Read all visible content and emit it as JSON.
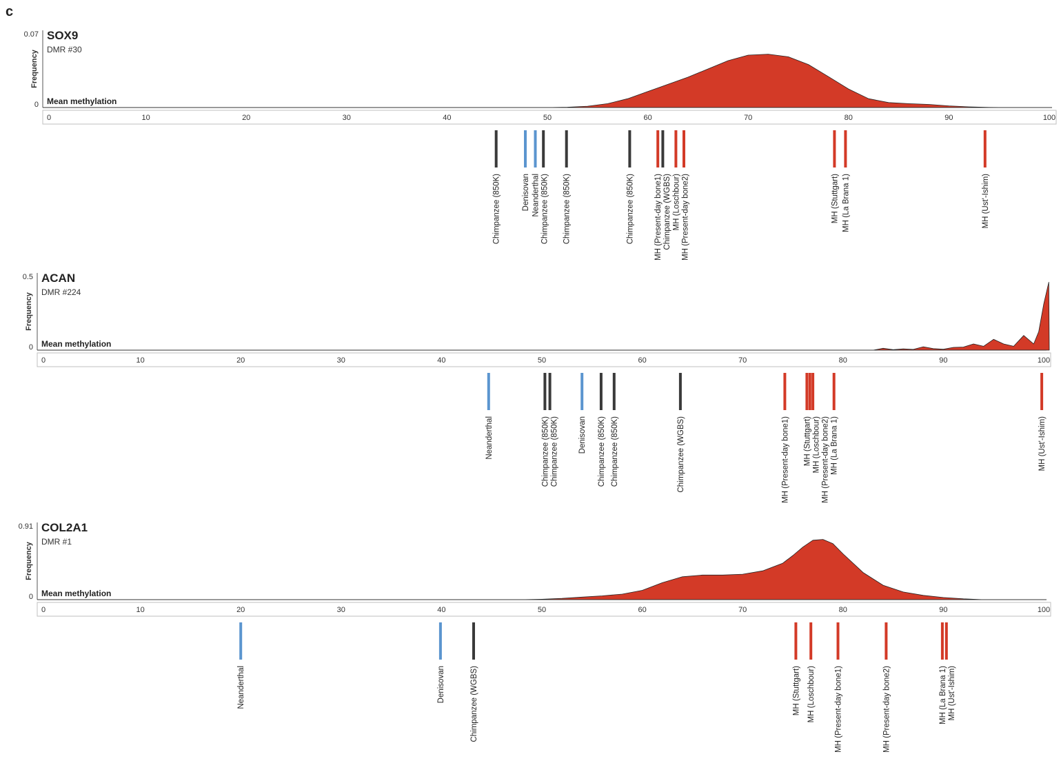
{
  "panel_label": "c",
  "colors": {
    "density_fill": "#d33a27",
    "density_stroke": "#222222",
    "modern_human": "#d33a27",
    "archaic": "#5b95cf",
    "chimpanzee": "#3a3a3a",
    "axis_box": "#bfbfbf"
  },
  "chart_data": [
    {
      "type": "area",
      "title": "SOX9",
      "subtitle": "DMR #30",
      "ylabel": "Frequency",
      "xlabel": "Mean methylation",
      "ylim": [
        0,
        0.07
      ],
      "ytick_labels": [
        "0.07",
        "0"
      ],
      "xlim": [
        0,
        100
      ],
      "xticks": [
        0,
        10,
        20,
        30,
        40,
        50,
        60,
        70,
        80,
        90,
        100
      ],
      "grid": false,
      "density": {
        "x": [
          0,
          50,
          52,
          54,
          56,
          58,
          60,
          62,
          64,
          66,
          68,
          70,
          72,
          74,
          76,
          78,
          80,
          82,
          84,
          86,
          88,
          90,
          92,
          94,
          96
        ],
        "y": [
          0,
          0,
          0.0003,
          0.0012,
          0.0035,
          0.008,
          0.0145,
          0.021,
          0.0275,
          0.035,
          0.0425,
          0.0475,
          0.0484,
          0.046,
          0.039,
          0.028,
          0.0168,
          0.008,
          0.0045,
          0.0035,
          0.0028,
          0.0015,
          0.0006,
          0.0001,
          0
        ]
      },
      "samples": [
        {
          "label": "Chimpanzee (850K)",
          "group": "chimpanzee",
          "value": 44.9
        },
        {
          "label": "Denisovan",
          "group": "archaic",
          "value": 47.8
        },
        {
          "label": "Neanderthal",
          "group": "archaic",
          "value": 48.8
        },
        {
          "label": "Chimpanzee (850K)",
          "group": "chimpanzee",
          "value": 49.6
        },
        {
          "label": "Chimpanzee (850K)",
          "group": "chimpanzee",
          "value": 51.9
        },
        {
          "label": "Chimpanzee (850K)",
          "group": "chimpanzee",
          "value": 58.2
        },
        {
          "label": "MH (Present-day bone1)",
          "group": "modern_human",
          "value": 61.0
        },
        {
          "label": "Chimpanzee (WGBS)",
          "group": "chimpanzee",
          "value": 61.5
        },
        {
          "label": "MH (Loschbour)",
          "group": "modern_human",
          "value": 62.8
        },
        {
          "label": "MH (Present-day bone2)",
          "group": "modern_human",
          "value": 63.6
        },
        {
          "label": "MH (Stuttgart)",
          "group": "modern_human",
          "value": 78.6
        },
        {
          "label": "MH (La Brana 1)",
          "group": "modern_human",
          "value": 79.7
        },
        {
          "label": "MH (Ust'-Ishim)",
          "group": "modern_human",
          "value": 93.6
        }
      ]
    },
    {
      "type": "area",
      "title": "ACAN",
      "subtitle": "DMR #224",
      "ylabel": "Frequency",
      "xlabel": "Mean methylation",
      "ylim": [
        0,
        0.5
      ],
      "ytick_labels": [
        "0.5",
        "0"
      ],
      "xlim": [
        0,
        100
      ],
      "xticks": [
        0,
        10,
        20,
        30,
        40,
        50,
        60,
        70,
        80,
        90,
        100
      ],
      "grid": false,
      "density": {
        "x": [
          0,
          83,
          84,
          85,
          86,
          87,
          88,
          89,
          90,
          91,
          92,
          93,
          94,
          95,
          96,
          97,
          98,
          99,
          99.5,
          100,
          100.5,
          101
        ],
        "y": [
          0,
          0,
          0.012,
          0.003,
          0.008,
          0.005,
          0.022,
          0.01,
          0.006,
          0.018,
          0.02,
          0.04,
          0.025,
          0.07,
          0.04,
          0.025,
          0.095,
          0.04,
          0.12,
          0.3,
          0.44,
          0
        ]
      },
      "samples": [
        {
          "label": "Neanderthal",
          "group": "archaic",
          "value": 44.7
        },
        {
          "label": "Chimpanzee (850K)",
          "group": "chimpanzee",
          "value": 50.3
        },
        {
          "label": "Chimpanzee (850K)",
          "group": "chimpanzee",
          "value": 50.8
        },
        {
          "label": "Denisovan",
          "group": "archaic",
          "value": 54.0
        },
        {
          "label": "Chimpanzee (850K)",
          "group": "chimpanzee",
          "value": 55.9
        },
        {
          "label": "Chimpanzee (850K)",
          "group": "chimpanzee",
          "value": 57.2
        },
        {
          "label": "Chimpanzee (WGBS)",
          "group": "chimpanzee",
          "value": 63.8
        },
        {
          "label": "MH (Present-day bone1)",
          "group": "modern_human",
          "value": 74.2
        },
        {
          "label": "MH (Stuttgart)",
          "group": "modern_human",
          "value": 76.4
        },
        {
          "label": "MH (Loschbour)",
          "group": "modern_human",
          "value": 76.7
        },
        {
          "label": "MH (Present-day bone2)",
          "group": "modern_human",
          "value": 77.0
        },
        {
          "label": "MH (La Brana 1)",
          "group": "modern_human",
          "value": 79.1
        },
        {
          "label": "MH (Ust'-Ishim)",
          "group": "modern_human",
          "value": 99.8
        }
      ]
    },
    {
      "type": "area",
      "title": "COL2A1",
      "subtitle": "DMR #1",
      "ylabel": "Frequency",
      "xlabel": "Mean methylation",
      "ylim": [
        0,
        0.91
      ],
      "ytick_labels": [
        "0.91",
        "0"
      ],
      "xlim": [
        0,
        100
      ],
      "xticks": [
        0,
        10,
        20,
        30,
        40,
        50,
        60,
        70,
        80,
        90,
        100
      ],
      "grid": false,
      "density": {
        "x": [
          0,
          48,
          50,
          52,
          54,
          56,
          58,
          60,
          62,
          64,
          66,
          68,
          70,
          72,
          74,
          75,
          76,
          77,
          78,
          79,
          80,
          82,
          84,
          86,
          88,
          90,
          92,
          94
        ],
        "y": [
          0,
          0,
          0.005,
          0.015,
          0.03,
          0.045,
          0.065,
          0.11,
          0.2,
          0.27,
          0.29,
          0.29,
          0.3,
          0.34,
          0.43,
          0.52,
          0.62,
          0.7,
          0.71,
          0.66,
          0.54,
          0.32,
          0.17,
          0.09,
          0.05,
          0.025,
          0.01,
          0
        ]
      },
      "samples": [
        {
          "label": "Neanderthal",
          "group": "archaic",
          "value": 20.0
        },
        {
          "label": "Denisovan",
          "group": "archaic",
          "value": 39.9
        },
        {
          "label": "Chimpanzee (WGBS)",
          "group": "chimpanzee",
          "value": 43.2
        },
        {
          "label": "MH (Stuttgart)",
          "group": "modern_human",
          "value": 75.3
        },
        {
          "label": "MH (Loschbour)",
          "group": "modern_human",
          "value": 76.8
        },
        {
          "label": "MH (Present-day bone1)",
          "group": "modern_human",
          "value": 79.5
        },
        {
          "label": "MH (Present-day bone2)",
          "group": "modern_human",
          "value": 84.3
        },
        {
          "label": "MH (La Brana 1)",
          "group": "modern_human",
          "value": 89.9
        },
        {
          "label": "MH (Ust'-Ishim)",
          "group": "modern_human",
          "value": 90.3
        }
      ]
    }
  ]
}
